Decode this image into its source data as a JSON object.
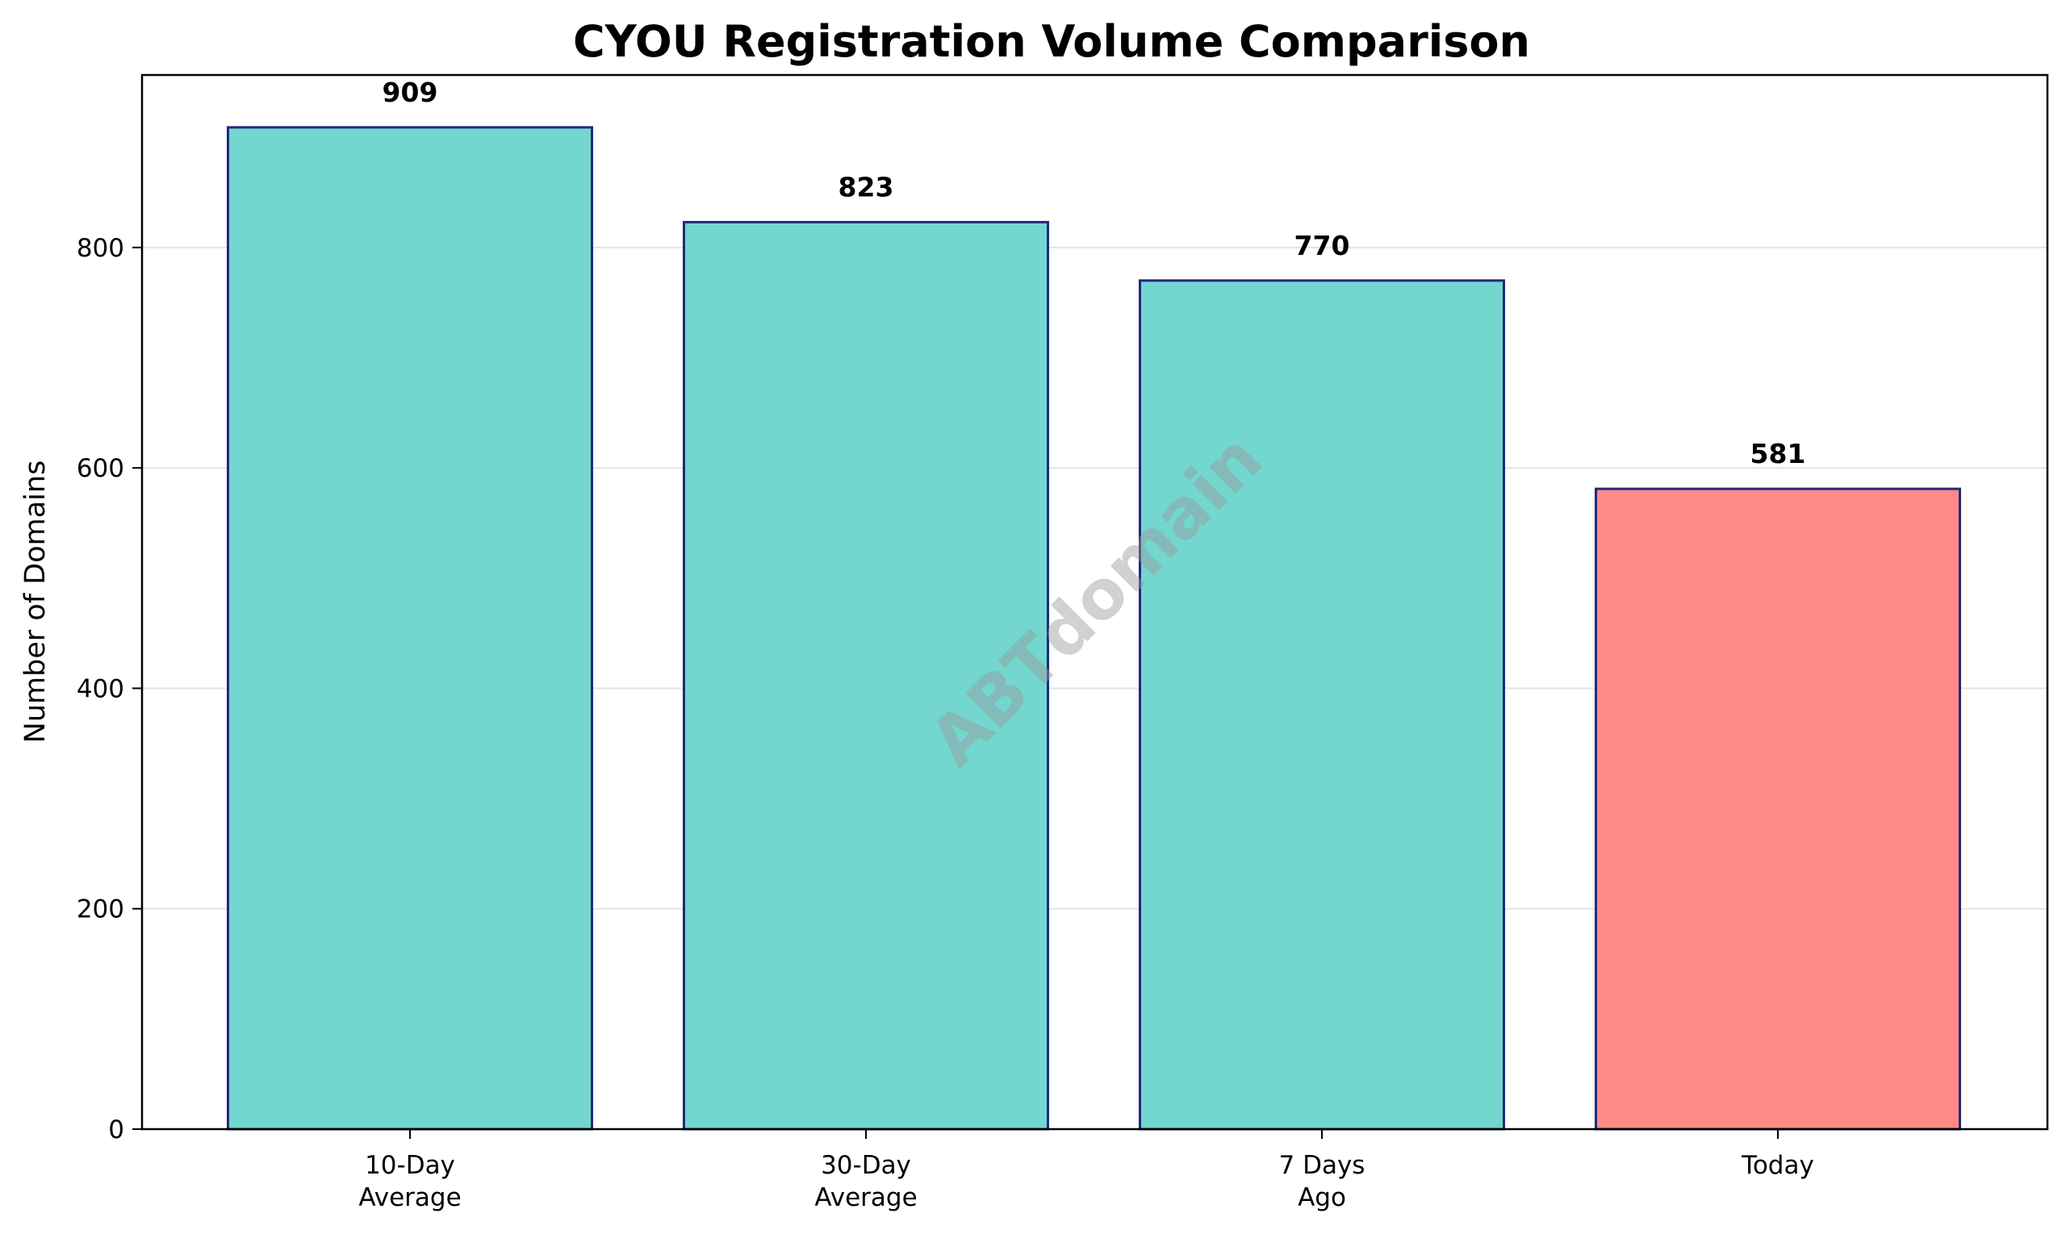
{
  "chart_data": {
    "type": "bar",
    "title": "CYOU Registration Volume Comparison",
    "xlabel": "",
    "ylabel": "Number of Domains",
    "categories": [
      [
        "10-Day",
        "Average"
      ],
      [
        "30-Day",
        "Average"
      ],
      [
        "7 Days",
        "Ago"
      ],
      [
        "Today"
      ]
    ],
    "values": [
      909,
      823,
      770,
      581
    ],
    "data_labels": [
      "909",
      "823",
      "770",
      "581"
    ],
    "bar_colors": [
      "#73d6cf",
      "#73d6cf",
      "#73d6cf",
      "#ff8a88"
    ],
    "bar_edge_color": "#1f2a7a",
    "ylim": [
      0,
      956.5
    ],
    "yticks": [
      0,
      200,
      400,
      600,
      800
    ],
    "grid": "horizontal",
    "grid_color": "#e3e3e3",
    "legend": "none"
  },
  "watermark": "ABTdomain"
}
